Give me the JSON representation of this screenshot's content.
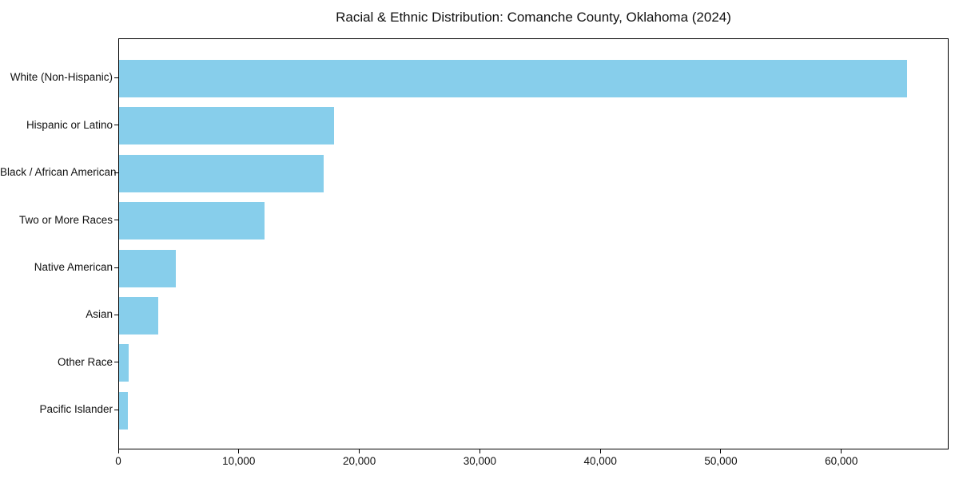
{
  "chart_data": {
    "type": "bar",
    "orientation": "horizontal",
    "title": "Racial & Ethnic Distribution: Comanche County, Oklahoma (2024)",
    "categories": [
      "White (Non-Hispanic)",
      "Hispanic or Latino",
      "Black / African American",
      "Two or More Races",
      "Native American",
      "Asian",
      "Other Race",
      "Pacific Islander"
    ],
    "values": [
      65500,
      17900,
      17000,
      12100,
      4700,
      3250,
      820,
      750
    ],
    "bar_color": "#87CEEB",
    "xlabel": "",
    "ylabel": "",
    "xlim": [
      0,
      68900
    ],
    "xticks": [
      0,
      10000,
      20000,
      30000,
      40000,
      50000,
      60000
    ],
    "xtick_labels": [
      "0",
      "10,000",
      "20,000",
      "30,000",
      "40,000",
      "50,000",
      "60,000"
    ],
    "grid": false,
    "legend": null,
    "background_color": "#ffffff",
    "text_color": "#111111"
  }
}
